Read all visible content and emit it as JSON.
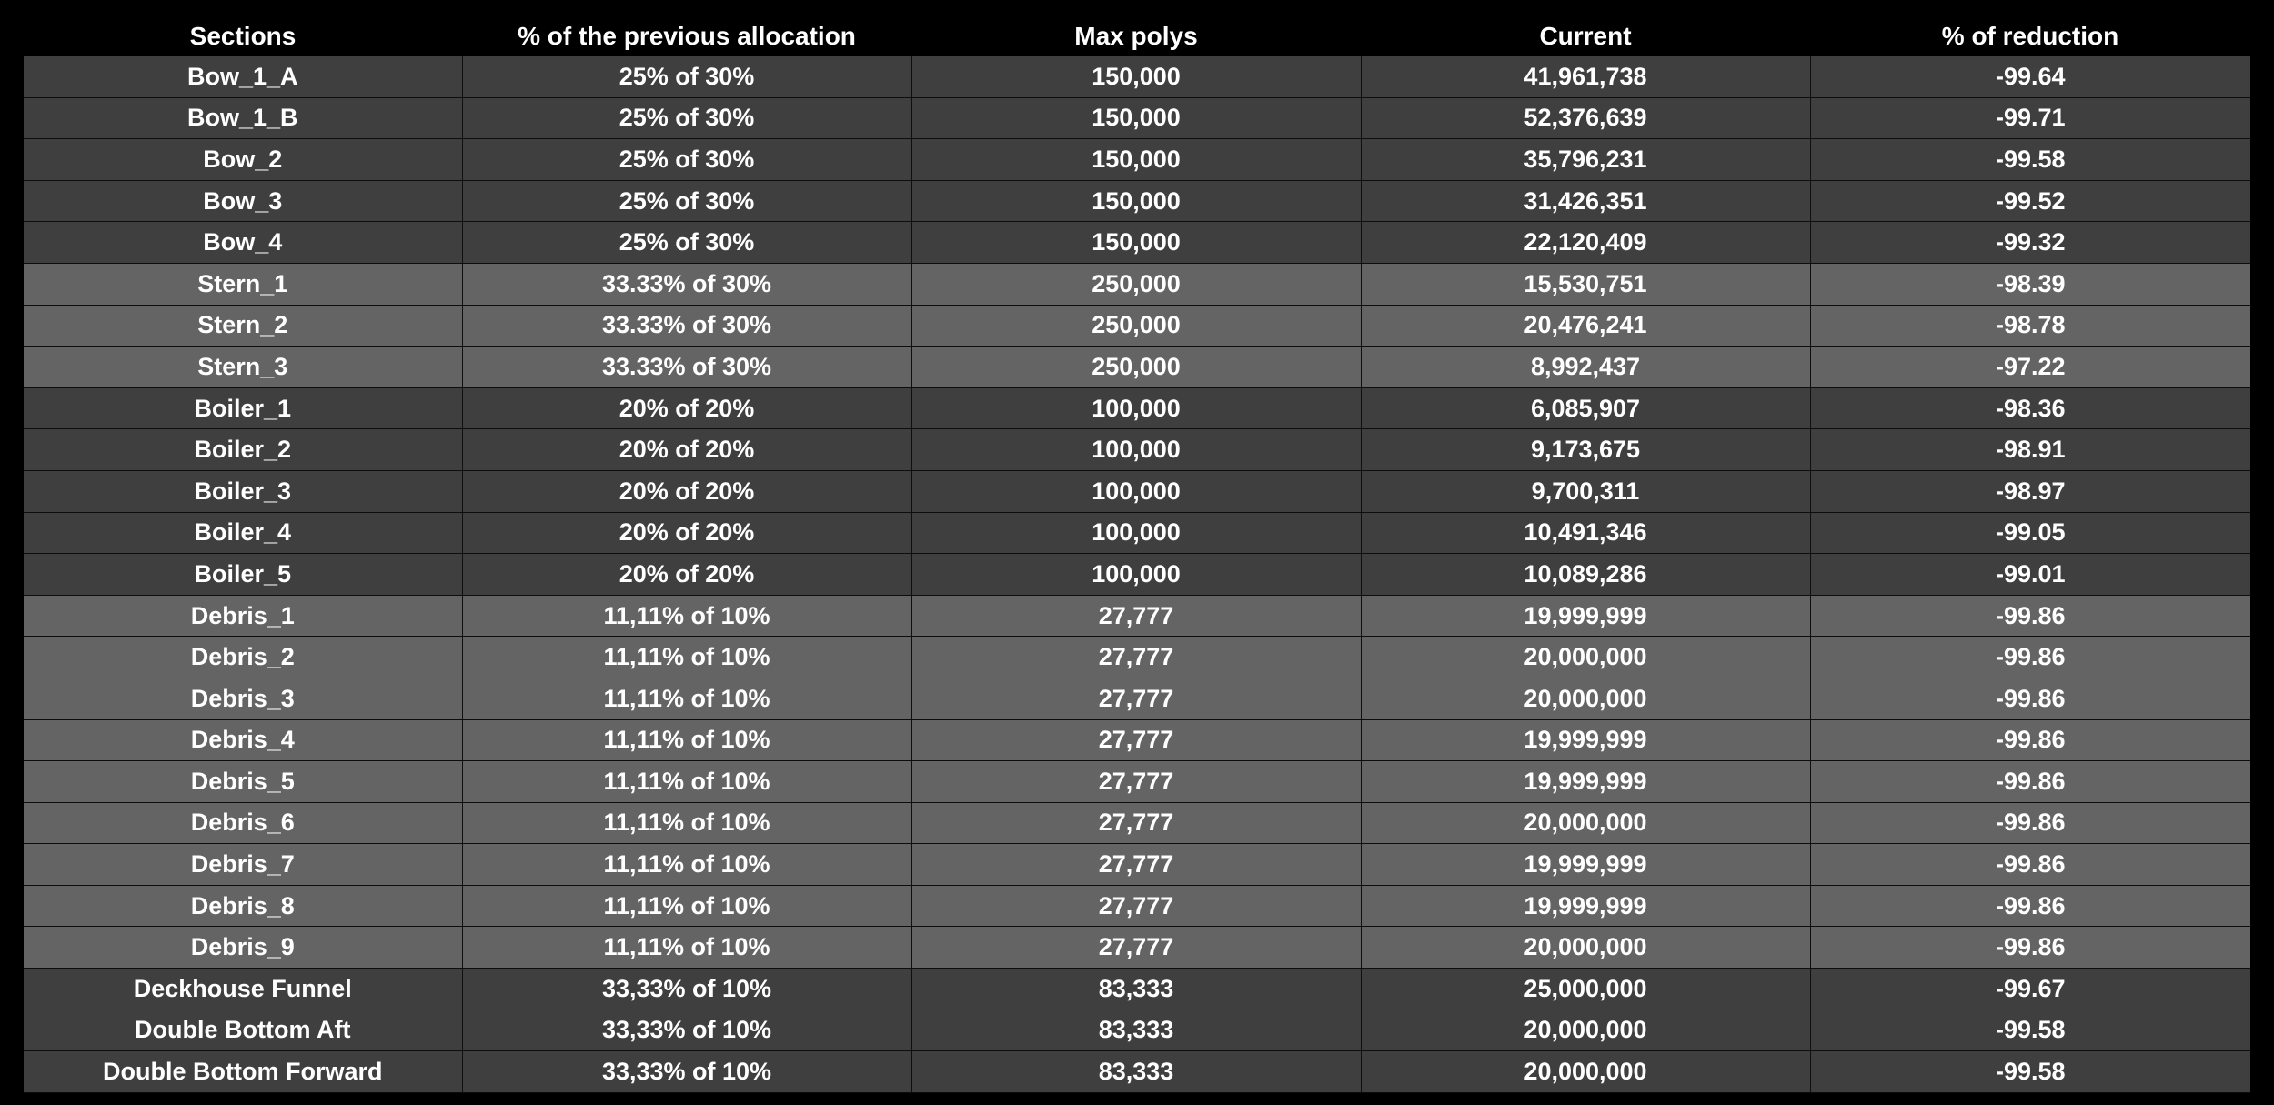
{
  "table": {
    "columns": [
      "Sections",
      "% of the previous allocation",
      "Max polys",
      "Current",
      "% of reduction"
    ],
    "band_colors": {
      "dark": "#3f3f3f",
      "light": "#646464"
    },
    "rows": [
      {
        "section": "Bow_1_A",
        "allocation": "25% of 30%",
        "max_polys": "150,000",
        "current": "41,961,738",
        "reduction": "-99.64",
        "band": "dark"
      },
      {
        "section": "Bow_1_B",
        "allocation": "25% of 30%",
        "max_polys": "150,000",
        "current": "52,376,639",
        "reduction": "-99.71",
        "band": "dark"
      },
      {
        "section": "Bow_2",
        "allocation": "25% of 30%",
        "max_polys": "150,000",
        "current": "35,796,231",
        "reduction": "-99.58",
        "band": "dark"
      },
      {
        "section": "Bow_3",
        "allocation": "25% of 30%",
        "max_polys": "150,000",
        "current": "31,426,351",
        "reduction": "-99.52",
        "band": "dark"
      },
      {
        "section": "Bow_4",
        "allocation": "25% of 30%",
        "max_polys": "150,000",
        "current": "22,120,409",
        "reduction": "-99.32",
        "band": "dark"
      },
      {
        "section": "Stern_1",
        "allocation": "33.33% of 30%",
        "max_polys": "250,000",
        "current": "15,530,751",
        "reduction": "-98.39",
        "band": "light"
      },
      {
        "section": "Stern_2",
        "allocation": "33.33% of 30%",
        "max_polys": "250,000",
        "current": "20,476,241",
        "reduction": "-98.78",
        "band": "light"
      },
      {
        "section": "Stern_3",
        "allocation": "33.33% of 30%",
        "max_polys": "250,000",
        "current": "8,992,437",
        "reduction": "-97.22",
        "band": "light"
      },
      {
        "section": "Boiler_1",
        "allocation": "20% of 20%",
        "max_polys": "100,000",
        "current": "6,085,907",
        "reduction": "-98.36",
        "band": "dark"
      },
      {
        "section": "Boiler_2",
        "allocation": "20% of 20%",
        "max_polys": "100,000",
        "current": "9,173,675",
        "reduction": "-98.91",
        "band": "dark"
      },
      {
        "section": "Boiler_3",
        "allocation": "20% of 20%",
        "max_polys": "100,000",
        "current": "9,700,311",
        "reduction": "-98.97",
        "band": "dark"
      },
      {
        "section": "Boiler_4",
        "allocation": "20% of 20%",
        "max_polys": "100,000",
        "current": "10,491,346",
        "reduction": "-99.05",
        "band": "dark"
      },
      {
        "section": "Boiler_5",
        "allocation": "20% of 20%",
        "max_polys": "100,000",
        "current": "10,089,286",
        "reduction": "-99.01",
        "band": "dark"
      },
      {
        "section": "Debris_1",
        "allocation": "11,11% of 10%",
        "max_polys": "27,777",
        "current": "19,999,999",
        "reduction": "-99.86",
        "band": "light"
      },
      {
        "section": "Debris_2",
        "allocation": "11,11% of 10%",
        "max_polys": "27,777",
        "current": "20,000,000",
        "reduction": "-99.86",
        "band": "light"
      },
      {
        "section": "Debris_3",
        "allocation": "11,11% of 10%",
        "max_polys": "27,777",
        "current": "20,000,000",
        "reduction": "-99.86",
        "band": "light"
      },
      {
        "section": "Debris_4",
        "allocation": "11,11% of 10%",
        "max_polys": "27,777",
        "current": "19,999,999",
        "reduction": "-99.86",
        "band": "light"
      },
      {
        "section": "Debris_5",
        "allocation": "11,11% of 10%",
        "max_polys": "27,777",
        "current": "19,999,999",
        "reduction": "-99.86",
        "band": "light"
      },
      {
        "section": "Debris_6",
        "allocation": "11,11% of 10%",
        "max_polys": "27,777",
        "current": "20,000,000",
        "reduction": "-99.86",
        "band": "light"
      },
      {
        "section": "Debris_7",
        "allocation": "11,11% of 10%",
        "max_polys": "27,777",
        "current": "19,999,999",
        "reduction": "-99.86",
        "band": "light"
      },
      {
        "section": "Debris_8",
        "allocation": "11,11% of 10%",
        "max_polys": "27,777",
        "current": "19,999,999",
        "reduction": "-99.86",
        "band": "light"
      },
      {
        "section": "Debris_9",
        "allocation": "11,11% of 10%",
        "max_polys": "27,777",
        "current": "20,000,000",
        "reduction": "-99.86",
        "band": "light"
      },
      {
        "section": "Deckhouse Funnel",
        "allocation": "33,33% of 10%",
        "max_polys": "83,333",
        "current": "25,000,000",
        "reduction": "-99.67",
        "band": "dark"
      },
      {
        "section": "Double Bottom Aft",
        "allocation": "33,33% of 10%",
        "max_polys": "83,333",
        "current": "20,000,000",
        "reduction": "-99.58",
        "band": "dark"
      },
      {
        "section": "Double Bottom Forward",
        "allocation": "33,33% of 10%",
        "max_polys": "83,333",
        "current": "20,000,000",
        "reduction": "-99.58",
        "band": "dark"
      }
    ]
  }
}
